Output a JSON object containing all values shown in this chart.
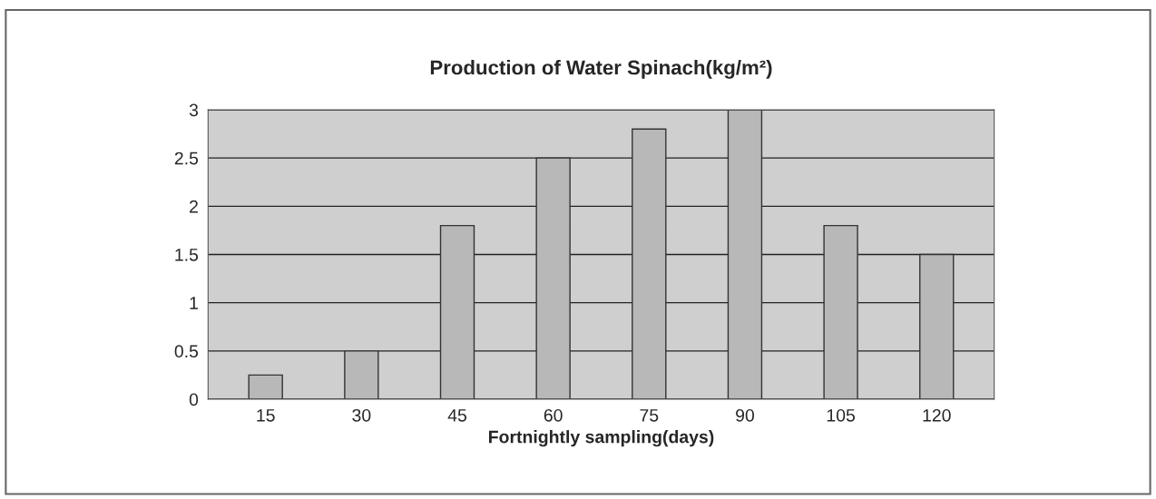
{
  "chart_data": {
    "type": "bar",
    "title": "Production of Water Spinach(kg/m²)",
    "xlabel": "Fortnightly sampling(days)",
    "categories": [
      "15",
      "30",
      "45",
      "60",
      "75",
      "90",
      "105",
      "120"
    ],
    "values": [
      0.25,
      0.5,
      1.8,
      2.5,
      2.8,
      3.0,
      1.8,
      1.5
    ],
    "color": "#b8b8b8",
    "ylim": [
      0,
      3
    ],
    "yticks": [
      0,
      0.5,
      1,
      1.5,
      2,
      2.5,
      3
    ],
    "grid": "y"
  }
}
